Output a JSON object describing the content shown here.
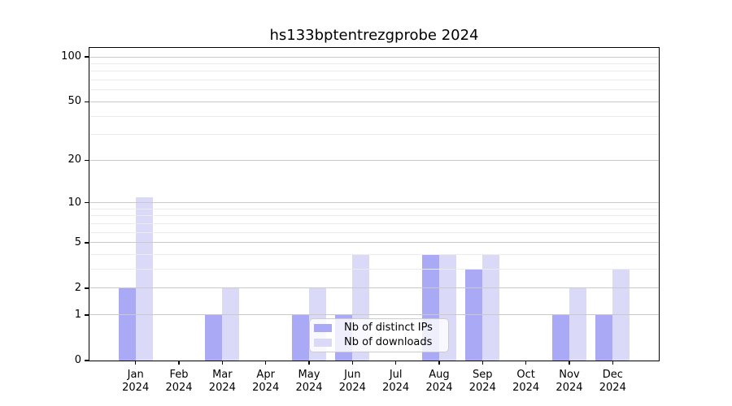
{
  "chart_data": {
    "type": "bar",
    "title": "hs133bptentrezgprobe 2024",
    "categories": [
      "Jan",
      "Feb",
      "Mar",
      "Apr",
      "May",
      "Jun",
      "Jul",
      "Aug",
      "Sep",
      "Oct",
      "Nov",
      "Dec"
    ],
    "year": "2024",
    "series": [
      {
        "name": "Nb of distinct IPs",
        "color": "#a9a9f6",
        "values": [
          2,
          0,
          1,
          0,
          1,
          1,
          0,
          4,
          3,
          0,
          1,
          1
        ]
      },
      {
        "name": "Nb of downloads",
        "color": "#dadaf8",
        "values": [
          11,
          0,
          2,
          0,
          2,
          4,
          0,
          4,
          4,
          0,
          2,
          3
        ]
      }
    ],
    "yscale": "log1p",
    "ylim": [
      0,
      115
    ],
    "yticks_major": [
      0,
      1,
      2,
      5,
      10,
      20,
      50,
      100
    ],
    "yticks_minor": [
      3,
      4,
      6,
      7,
      8,
      9,
      30,
      40,
      60,
      70,
      80,
      90
    ],
    "grid": "horizontal",
    "legend_position": "lower-center"
  },
  "colors": {
    "axis": "#000000",
    "grid_major": "#c9c9c9",
    "grid_minor": "#ececec",
    "text": "#000000",
    "background": "#ffffff",
    "legend_border": "#cccccc"
  }
}
